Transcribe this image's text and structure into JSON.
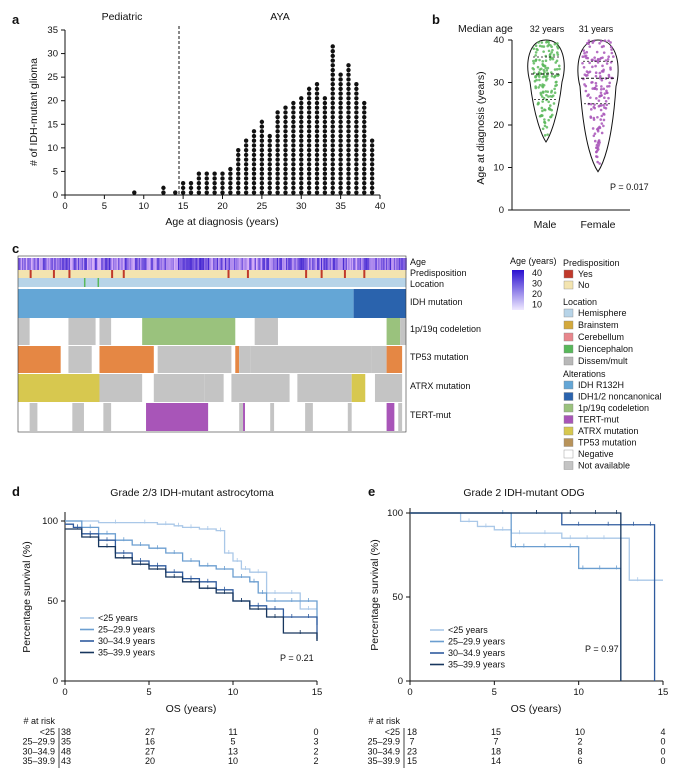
{
  "panels": {
    "a": {
      "label": "a",
      "title_left": "Pediatric",
      "title_right": "AYA",
      "xlabel": "Age at diagnosis (years)",
      "ylabel": "# of IDH-mutant glioma",
      "xticks": [
        "0",
        "5",
        "10",
        "15",
        "20",
        "25",
        "30",
        "35",
        "40"
      ],
      "yticks": [
        "0",
        "5",
        "10",
        "15",
        "20",
        "25",
        "30",
        "35"
      ]
    },
    "b": {
      "label": "b",
      "title": "Median age",
      "median_male": "32 years",
      "median_female": "31 years",
      "ylabel": "Age at diagnosis (years)",
      "xlabels": [
        "Male",
        "Female"
      ],
      "yticks": [
        "0",
        "10",
        "20",
        "30",
        "40"
      ],
      "pvalue": "P = 0.017"
    },
    "c": {
      "label": "c",
      "row_labels": [
        "Age",
        "Predisposition",
        "Location",
        "IDH mutation",
        "1p/19q codeletion",
        "TP53 mutation",
        "ATRX mutation",
        "TERT-mut"
      ],
      "age_legend_title": "Age (years)",
      "age_legend_ticks": [
        "40",
        "30",
        "20",
        "10"
      ],
      "predisposition_title": "Predisposition",
      "predisposition_items": [
        {
          "label": "Yes",
          "color": "#c0392b"
        },
        {
          "label": "No",
          "color": "#f3e4b0"
        }
      ],
      "location_title": "Location",
      "location_items": [
        {
          "label": "Hemisphere",
          "color": "#b7d4e8"
        },
        {
          "label": "Brainstem",
          "color": "#d4a93c"
        },
        {
          "label": "Cerebellum",
          "color": "#e8868c"
        },
        {
          "label": "Diencephalon",
          "color": "#58b85a"
        },
        {
          "label": "Dissem/mult",
          "color": "#b8b8b8"
        }
      ],
      "alterations_title": "Alterations",
      "alteration_items": [
        {
          "label": "IDH R132H",
          "color": "#64a6d6"
        },
        {
          "label": "IDH1/2 noncanonical",
          "color": "#2a63ad"
        },
        {
          "label": "1p/19q codeletion",
          "color": "#9ac27d"
        },
        {
          "label": "TERT-mut",
          "color": "#a855b8"
        },
        {
          "label": "ATRX mutation",
          "color": "#d7c84f"
        },
        {
          "label": "TP53 mutation",
          "color": "#b8935a"
        },
        {
          "label": "Negative",
          "color": "#ffffff"
        },
        {
          "label": "Not available",
          "color": "#c4c4c4"
        }
      ]
    },
    "d": {
      "label": "d",
      "title": "Grade 2/3 IDH-mutant astrocytoma",
      "xlabel": "OS (years)",
      "ylabel": "Percentage survival (%)",
      "pvalue": "P = 0.21",
      "risk_title": "# at risk",
      "risk_table": [
        {
          "group": "<25",
          "values": [
            "38",
            "27",
            "11",
            "0"
          ]
        },
        {
          "group": "25–29.9",
          "values": [
            "35",
            "16",
            "5",
            "3"
          ]
        },
        {
          "group": "30–34.9",
          "values": [
            "48",
            "27",
            "13",
            "2"
          ]
        },
        {
          "group": "35–39.9",
          "values": [
            "43",
            "20",
            "10",
            "2"
          ]
        }
      ]
    },
    "e": {
      "label": "e",
      "title": "Grade 2 IDH-mutant ODG",
      "xlabel": "OS (years)",
      "ylabel": "Percentage survival (%)",
      "pvalue": "P = 0.97",
      "risk_title": "# at risk",
      "risk_table": [
        {
          "group": "<25",
          "values": [
            "18",
            "15",
            "10",
            "4"
          ]
        },
        {
          "group": "25–29.9",
          "values": [
            "7",
            "7",
            "2",
            "0"
          ]
        },
        {
          "group": "30–34.9",
          "values": [
            "23",
            "18",
            "8",
            "0"
          ]
        },
        {
          "group": "35–39.9",
          "values": [
            "15",
            "14",
            "6",
            "0"
          ]
        }
      ]
    }
  },
  "chart_data": [
    {
      "id": "a",
      "type": "scatter",
      "title": "",
      "xlabel": "Age at diagnosis (years)",
      "ylabel": "# of IDH-mutant glioma",
      "xlim": [
        0,
        40
      ],
      "ylim": [
        0,
        35
      ],
      "annotation": "dashed line at age 15 separating Pediatric and AYA",
      "ages": [
        8.8,
        12.5,
        14,
        15,
        16,
        17,
        18,
        19,
        20,
        21,
        22,
        23,
        24,
        25,
        26,
        27,
        28,
        29,
        30,
        31,
        32,
        33,
        34,
        35,
        36,
        37,
        38,
        39
      ],
      "counts": [
        1,
        2,
        1,
        3,
        3,
        5,
        5,
        5,
        5,
        6,
        10,
        12,
        14,
        16,
        13,
        18,
        19,
        20,
        21,
        23,
        24,
        21,
        32,
        26,
        28,
        24,
        20,
        12
      ]
    },
    {
      "id": "b",
      "type": "scatter",
      "title": "Median age",
      "xlabel": "",
      "ylabel": "Age at diagnosis (years)",
      "categories": [
        "Male",
        "Female"
      ],
      "ylim": [
        0,
        40
      ],
      "series": [
        {
          "name": "Male",
          "median": 32,
          "min": 16,
          "max": 40,
          "color": "#5cb85c"
        },
        {
          "name": "Female",
          "median": 31,
          "min": 9,
          "max": 40,
          "color": "#a855b8"
        }
      ]
    },
    {
      "id": "d",
      "type": "line",
      "title": "Grade 2/3 IDH-mutant astrocytoma",
      "xlabel": "OS (years)",
      "ylabel": "Percentage survival (%)",
      "xlim": [
        0,
        15
      ],
      "ylim": [
        0,
        100
      ],
      "xticks": [
        0,
        5,
        10,
        15
      ],
      "yticks": [
        0,
        50,
        100
      ],
      "series": [
        {
          "name": "<25 years",
          "color": "#aac8e8",
          "x": [
            0,
            2,
            4,
            5.5,
            6.5,
            7,
            8,
            9,
            9.5,
            10,
            10.5,
            11,
            12,
            13,
            14,
            15
          ],
          "y": [
            100,
            99,
            99,
            98,
            97,
            96,
            95,
            94,
            80,
            75,
            70,
            68,
            55,
            55,
            45,
            45
          ]
        },
        {
          "name": "25–29.9 years",
          "color": "#6b9ed0",
          "x": [
            0,
            1,
            2,
            3,
            4,
            5,
            6,
            7,
            8,
            9,
            10,
            11,
            11.5,
            12,
            13,
            14,
            15
          ],
          "y": [
            100,
            96,
            92,
            88,
            85,
            83,
            80,
            75,
            72,
            70,
            65,
            62,
            55,
            50,
            50,
            50,
            35
          ]
        },
        {
          "name": "30–34.9 years",
          "color": "#2f5b9e",
          "x": [
            0,
            0.5,
            1,
            2,
            3,
            4,
            5,
            6,
            7,
            8,
            9,
            10,
            11,
            12,
            13,
            14,
            15
          ],
          "y": [
            98,
            96,
            92,
            88,
            80,
            75,
            72,
            68,
            64,
            62,
            57,
            50,
            47,
            45,
            40,
            40,
            26
          ]
        },
        {
          "name": "35–39.9 years",
          "color": "#17365e",
          "x": [
            0,
            1,
            2,
            3,
            4,
            5,
            6,
            7,
            8,
            9,
            10,
            11,
            12,
            13,
            15
          ],
          "y": [
            95,
            90,
            84,
            77,
            73,
            70,
            65,
            62,
            58,
            55,
            50,
            45,
            40,
            30,
            25
          ]
        }
      ]
    },
    {
      "id": "e",
      "type": "line",
      "title": "Grade 2 IDH-mutant ODG",
      "xlabel": "OS (years)",
      "ylabel": "Percentage survival (%)",
      "xlim": [
        0,
        15
      ],
      "ylim": [
        0,
        100
      ],
      "xticks": [
        0,
        5,
        10,
        15
      ],
      "yticks": [
        0,
        50,
        100
      ],
      "series": [
        {
          "name": "<25 years",
          "color": "#aac8e8",
          "x": [
            0,
            3,
            4,
            5,
            6,
            7,
            9,
            10,
            11,
            12,
            13,
            14,
            15
          ],
          "y": [
            100,
            95,
            92,
            90,
            88,
            88,
            85,
            85,
            85,
            85,
            60,
            60,
            60
          ]
        },
        {
          "name": "25–29.9 years",
          "color": "#6b9ed0",
          "x": [
            0,
            5,
            6,
            6.5,
            7,
            9,
            10,
            10.5,
            12,
            12.5
          ],
          "y": [
            100,
            100,
            80,
            80,
            80,
            80,
            67,
            67,
            67,
            0
          ]
        },
        {
          "name": "30–34.9 years",
          "color": "#2f5b9e",
          "x": [
            0,
            6,
            9,
            11,
            12.5,
            12.5,
            14,
            14.5
          ],
          "y": [
            100,
            100,
            93,
            93,
            93,
            93,
            93,
            0
          ]
        },
        {
          "name": "35–39.9 years",
          "color": "#17365e",
          "x": [
            0,
            6,
            9,
            10,
            12,
            12.5
          ],
          "y": [
            100,
            100,
            100,
            100,
            100,
            0
          ]
        }
      ]
    }
  ]
}
